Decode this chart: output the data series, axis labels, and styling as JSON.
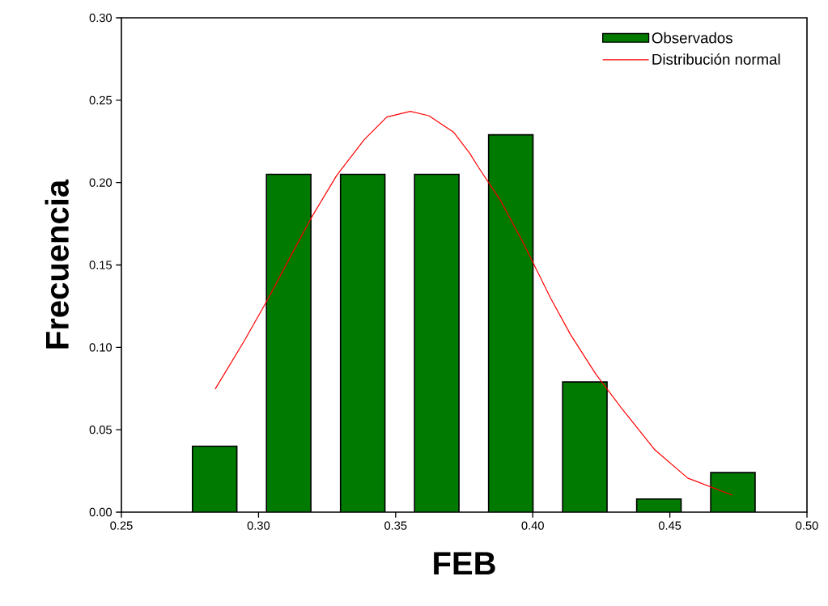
{
  "chart_data": {
    "type": "bar",
    "xlabel": "FEB",
    "ylabel": "Frecuencia",
    "xlim": [
      0.25,
      0.5
    ],
    "ylim": [
      0,
      0.3
    ],
    "xticks": [
      {
        "value": 0.25,
        "label": "0.25"
      },
      {
        "value": 0.3,
        "label": "0.30"
      },
      {
        "value": 0.35,
        "label": "0.35"
      },
      {
        "value": 0.4,
        "label": "0.40"
      },
      {
        "value": 0.45,
        "label": "0.45"
      },
      {
        "value": 0.5,
        "label": "0.50"
      }
    ],
    "yticks": [
      {
        "value": 0,
        "label": "0.00"
      },
      {
        "value": 0.05,
        "label": "0.05"
      },
      {
        "value": 0.1,
        "label": "0.10"
      },
      {
        "value": 0.15,
        "label": "0.15"
      },
      {
        "value": 0.2,
        "label": "0.20"
      },
      {
        "value": 0.25,
        "label": "0.25"
      },
      {
        "value": 0.3,
        "label": "0.30"
      }
    ],
    "series": [
      {
        "name": "Observados",
        "color": "#007a00",
        "x": [
          0.284,
          0.311,
          0.338,
          0.365,
          0.392,
          0.419,
          0.446,
          0.473
        ],
        "values": [
          0.04,
          0.205,
          0.205,
          0.205,
          0.229,
          0.079,
          0.008,
          0.024
        ]
      },
      {
        "name": "Distribución normal",
        "type": "line",
        "color": "#ff0000",
        "x": [
          0.2842,
          0.2949,
          0.303,
          0.3122,
          0.3193,
          0.3285,
          0.3386,
          0.3468,
          0.3554,
          0.3621,
          0.3712,
          0.377,
          0.3802,
          0.3883,
          0.3965,
          0.4066,
          0.4138,
          0.4229,
          0.4321,
          0.4443,
          0.4565,
          0.4728
        ],
        "values": [
          0.0747,
          0.1042,
          0.128,
          0.1568,
          0.1788,
          0.2043,
          0.2262,
          0.2398,
          0.2432,
          0.2406,
          0.2305,
          0.2178,
          0.2093,
          0.189,
          0.1635,
          0.1296,
          0.1077,
          0.084,
          0.0637,
          0.0382,
          0.0207,
          0.0103
        ]
      }
    ],
    "legend": "top right",
    "grid": false,
    "marker": "none",
    "line_style": "solid"
  }
}
